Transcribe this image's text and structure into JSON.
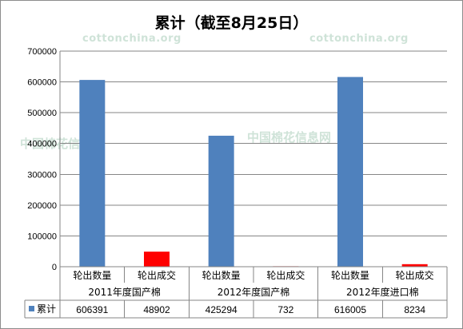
{
  "title": "累计（截至8月25日）",
  "watermarks": [
    "cottonchina.org",
    "cottonchina.org",
    "中国棉花信息网",
    "中国棉花信息网"
  ],
  "colors": {
    "series_blue": "#4f81bd",
    "series_red_override": "#ff0000",
    "grid": "#868686",
    "axis": "#868686",
    "plot_bg": "#ffffff"
  },
  "chart_data": {
    "type": "bar",
    "title": "累计（截至8月25日）",
    "ylim": [
      0,
      700000
    ],
    "yticks": [
      0,
      100000,
      200000,
      300000,
      400000,
      500000,
      600000,
      700000
    ],
    "grid": true,
    "categories": [
      {
        "group": "2011年度国产棉",
        "label": "轮出数量"
      },
      {
        "group": "2011年度国产棉",
        "label": "轮出成交"
      },
      {
        "group": "2012年度国产棉",
        "label": "轮出数量"
      },
      {
        "group": "2012年度国产棉",
        "label": "轮出成交"
      },
      {
        "group": "2012年度进口棉",
        "label": "轮出数量"
      },
      {
        "group": "2012年度进口棉",
        "label": "轮出成交"
      }
    ],
    "series": [
      {
        "name": "累计",
        "values": [
          606391,
          48902,
          425294,
          732,
          616005,
          8234
        ]
      }
    ],
    "bar_colors": [
      "#4f81bd",
      "#ff0000",
      "#4f81bd",
      "#ff0000",
      "#4f81bd",
      "#ff0000"
    ],
    "data_table": {
      "legend_label": "累计",
      "values": [
        "606391",
        "48902",
        "425294",
        "732",
        "616005",
        "8234"
      ]
    }
  }
}
